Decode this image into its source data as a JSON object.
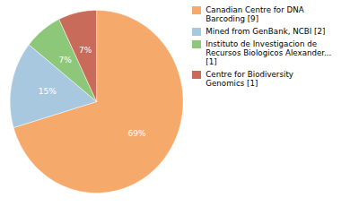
{
  "chart_data": {
    "type": "pie",
    "categories": [
      "Canadian Centre for DNA\nBarcoding [9]",
      "Mined from GenBank, NCBI [2]",
      "Instituto de Investigacion de\nRecursos Biologicos Alexander... [1]",
      "Centre for Biodiversity\nGenomics [1]"
    ],
    "values": [
      69,
      15,
      7,
      7
    ],
    "value_labels": [
      "69%",
      "15%",
      "7%",
      "7%"
    ],
    "colors": [
      "#F5A96A",
      "#A8C8E0",
      "#8DC87A",
      "#C96B5A"
    ],
    "data_labels": true,
    "legend": "right"
  }
}
